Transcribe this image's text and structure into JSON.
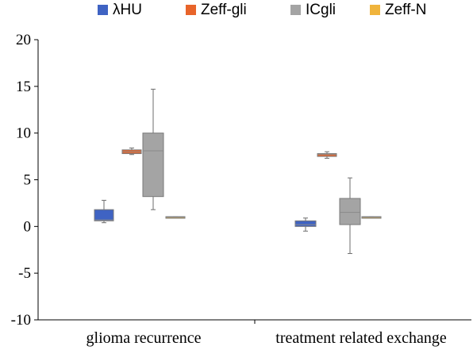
{
  "chart_data": {
    "type": "box",
    "title": "",
    "xlabel": "",
    "ylabel": "",
    "ylim": [
      -10,
      20
    ],
    "yticks": [
      20,
      15,
      10,
      5,
      0,
      -5,
      -10
    ],
    "grid": false,
    "legend_position": "top",
    "categories": [
      "glioma recurrence",
      "treatment related exchange"
    ],
    "series": [
      {
        "name": "λHU",
        "color": "#3f63c3",
        "boxes": [
          {
            "min": 0.4,
            "q1": 0.6,
            "median": 0.7,
            "q3": 1.8,
            "max": 2.8
          },
          {
            "min": -0.5,
            "q1": 0.0,
            "median": 0.2,
            "q3": 0.6,
            "max": 0.9
          }
        ]
      },
      {
        "name": "Zeff-gli",
        "color": "#e8642a",
        "boxes": [
          {
            "min": 7.7,
            "q1": 7.8,
            "median": 8.0,
            "q3": 8.2,
            "max": 8.4
          },
          {
            "min": 7.3,
            "q1": 7.5,
            "median": 7.7,
            "q3": 7.8,
            "max": 8.0
          }
        ]
      },
      {
        "name": "ICgli",
        "color": "#a4a4a4",
        "boxes": [
          {
            "min": 1.8,
            "q1": 3.2,
            "median": 8.1,
            "q3": 10.0,
            "max": 14.7
          },
          {
            "min": -2.9,
            "q1": 0.2,
            "median": 1.5,
            "q3": 3.0,
            "max": 5.2
          }
        ]
      },
      {
        "name": "Zeff-N",
        "color": "#f0b43c",
        "boxes": [
          {
            "min": 1.0,
            "q1": 1.0,
            "median": 1.0,
            "q3": 1.05,
            "max": 1.05
          },
          {
            "min": 0.95,
            "q1": 0.95,
            "median": 1.0,
            "q3": 1.05,
            "max": 1.05
          }
        ]
      }
    ]
  }
}
